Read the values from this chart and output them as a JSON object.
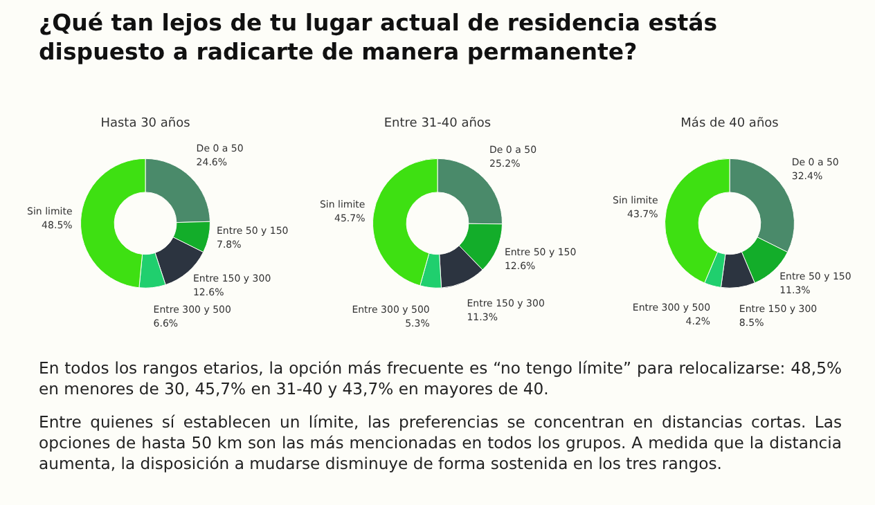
{
  "chart_data": [
    {
      "type": "other",
      "title": "¿Qué tan lejos de tu lugar actual de residencia estás dispuesto a radicarte de manera permanente?"
    },
    {
      "type": "donut",
      "title": "Hasta 30 años",
      "categories": [
        "De 0 a 50",
        "Entre 50 y 150",
        "Entre 150 y 300",
        "Entre 300 y 500",
        "Sin limite"
      ],
      "values": [
        24.6,
        7.8,
        12.6,
        6.6,
        48.5
      ],
      "value_labels": [
        "24.6%",
        "7.8%",
        "12.6%",
        "6.6%",
        "48.5%"
      ],
      "colors": [
        "#4a8a6a",
        "#13ad2a",
        "#2c3440",
        "#20cf6e",
        "#3ee012"
      ]
    },
    {
      "type": "donut",
      "title": "Entre 31-40 años",
      "categories": [
        "De 0 a 50",
        "Entre 50 y 150",
        "Entre 150 y 300",
        "Entre 300 y 500",
        "Sin limite"
      ],
      "values": [
        25.2,
        12.6,
        11.3,
        5.3,
        45.7
      ],
      "value_labels": [
        "25.2%",
        "12.6%",
        "11.3%",
        "5.3%",
        "45.7%"
      ],
      "colors": [
        "#4a8a6a",
        "#13ad2a",
        "#2c3440",
        "#20cf6e",
        "#3ee012"
      ]
    },
    {
      "type": "donut",
      "title": "Más de 40 años",
      "categories": [
        "De 0 a 50",
        "Entre 50 y 150",
        "Entre 150 y 300",
        "Entre 300 y 500",
        "Sin limite"
      ],
      "values": [
        32.4,
        11.3,
        8.5,
        4.2,
        43.7
      ],
      "value_labels": [
        "32.4%",
        "11.3%",
        "8.5%",
        "4.2%",
        "43.7%"
      ],
      "colors": [
        "#4a8a6a",
        "#13ad2a",
        "#2c3440",
        "#20cf6e",
        "#3ee012"
      ]
    },
    {
      "type": "other",
      "annotations": [
        "En todos los rangos etarios, la opción más frecuente es “no tengo límite” para relocalizarse: 48,5% en menores de 30, 45,7% en 31-40 y 43,7% en mayores de 40.",
        "Entre quienes sí establecen un límite, las preferencias se concentran en distancias cortas. Las opciones de hasta 50 km son las más mencionadas en todos los grupos. A medida que la distancia aumenta, la disposición a mudarse disminuye de forma sostenida en los tres rangos."
      ]
    }
  ]
}
